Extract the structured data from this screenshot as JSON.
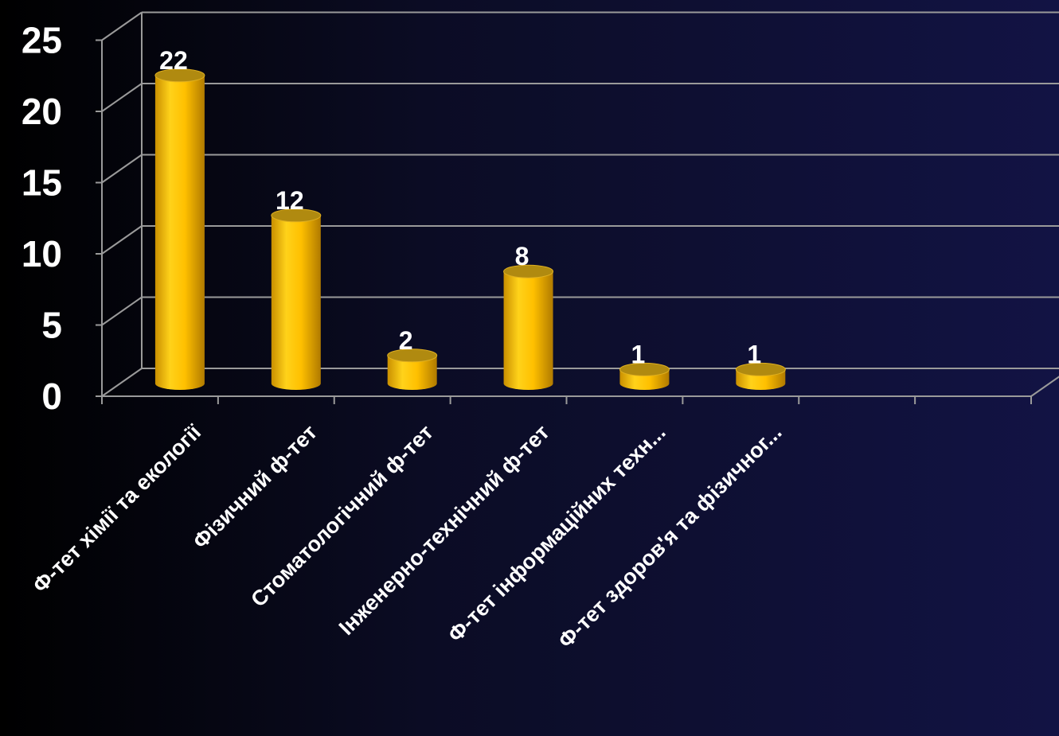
{
  "chart_data": {
    "type": "bar",
    "categories": [
      "Ф-тет хімії та екології",
      "Фізичний ф-тет",
      "Стоматологічний ф-тет",
      "Інженерно-технічний ф-тет",
      "Ф-тет інформаційних техн...",
      "Ф-тет здоров'я та фізичног..."
    ],
    "values": [
      22,
      12,
      2,
      8,
      1,
      1
    ],
    "ylim": [
      0,
      25
    ],
    "yticks": [
      "0",
      "5",
      "10",
      "15",
      "20",
      "25"
    ],
    "bar_color": "#ffc000",
    "grid": true,
    "legend": "none"
  }
}
